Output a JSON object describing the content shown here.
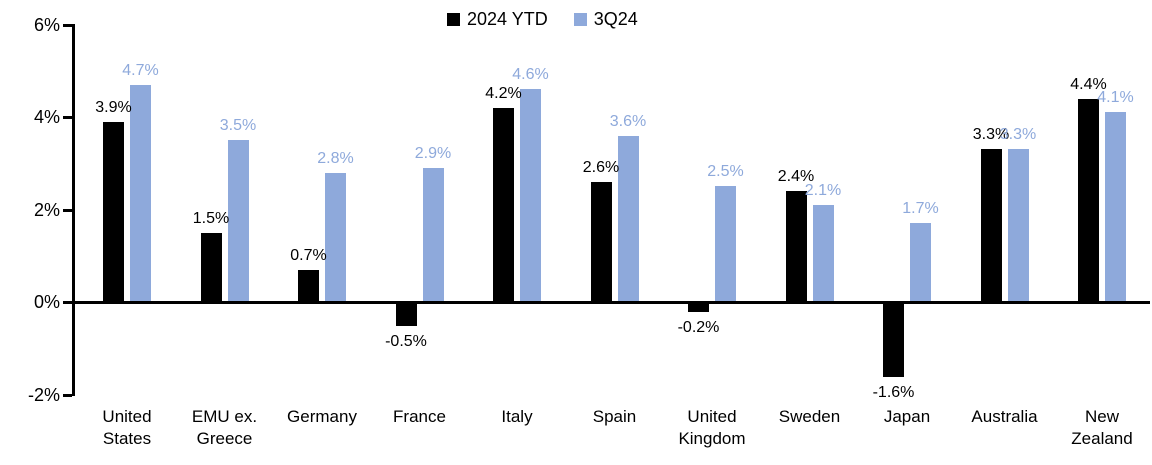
{
  "chart_data": {
    "type": "bar",
    "title": "",
    "xlabel": "",
    "ylabel": "",
    "categories": [
      "United States",
      "EMU ex. Greece",
      "Germany",
      "France",
      "Italy",
      "Spain",
      "United Kingdom",
      "Sweden",
      "Japan",
      "Australia",
      "New Zealand"
    ],
    "series": [
      {
        "name": "2024 YTD",
        "color": "#000000",
        "values": [
          3.9,
          1.5,
          0.7,
          -0.5,
          4.2,
          2.6,
          -0.2,
          2.4,
          -1.6,
          3.3,
          4.4
        ]
      },
      {
        "name": "3Q24",
        "color": "#8EA9DB",
        "values": [
          4.7,
          3.5,
          2.8,
          2.9,
          4.6,
          3.6,
          2.5,
          2.1,
          1.7,
          3.3,
          4.1
        ]
      }
    ],
    "value_labels": [
      [
        "3.9%",
        "1.5%",
        "0.7%",
        "-0.5%",
        "4.2%",
        "2.6%",
        "-0.2%",
        "2.4%",
        "-1.6%",
        "3.3%",
        "4.4%"
      ],
      [
        "4.7%",
        "3.5%",
        "2.8%",
        "2.9%",
        "4.6%",
        "3.6%",
        "2.5%",
        "2.1%",
        "1.7%",
        "3.3%",
        "4.1%"
      ]
    ],
    "ylim": [
      -2,
      6
    ],
    "yticks": [
      {
        "value": 6,
        "label": "6%"
      },
      {
        "value": 4,
        "label": "4%"
      },
      {
        "value": 2,
        "label": "2%"
      },
      {
        "value": 0,
        "label": "0%"
      },
      {
        "value": -2,
        "label": "-2%"
      }
    ],
    "grid": false,
    "legend_position": "top-center",
    "axis_color": "#000000"
  }
}
